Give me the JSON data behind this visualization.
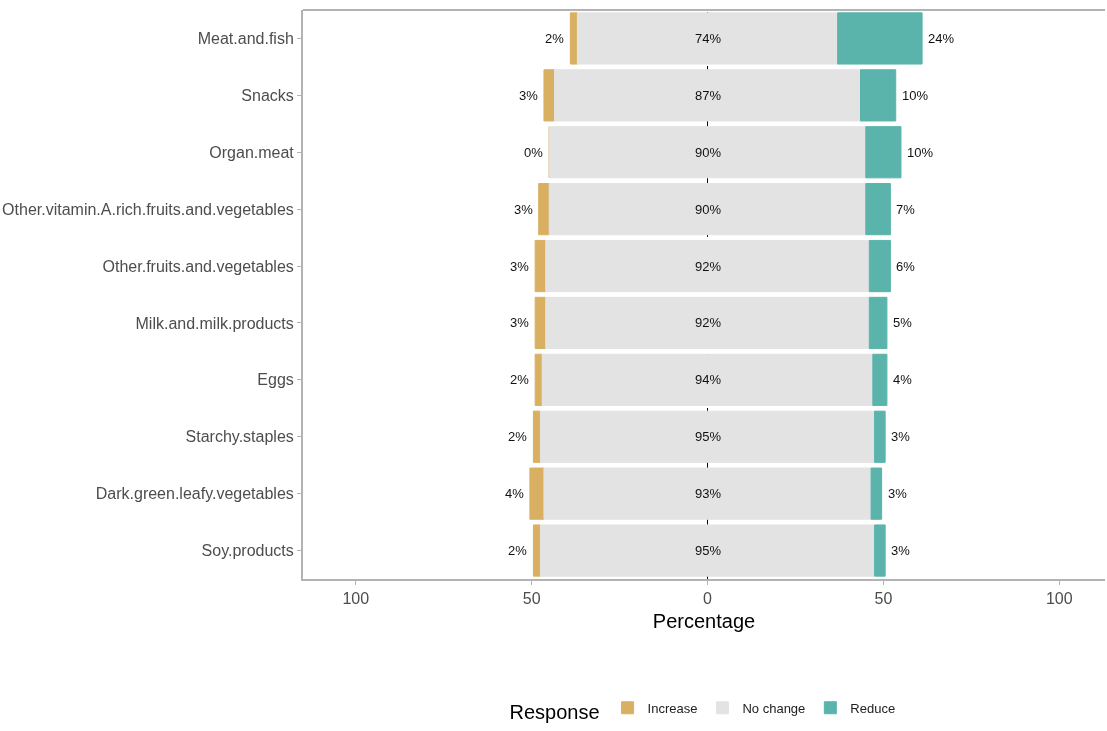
{
  "chart_data": {
    "type": "bar",
    "orientation": "horizontal",
    "stacked": true,
    "xlabel": "Percentage",
    "legend_title": "Response",
    "legend": "bottom",
    "categories": [
      "Meat.and.fish",
      "Snacks",
      "Organ.meat",
      "Other.vitamin.A.rich.fruits.and.vegetables",
      "Other.fruits.and.vegetables",
      "Milk.and.milk.products",
      "Eggs",
      "Starchy.staples",
      "Dark.green.leafy.vegetables",
      "Soy.products"
    ],
    "series": [
      {
        "name": "Increase",
        "color": "#d9b062",
        "values": [
          2,
          3,
          0,
          3,
          3,
          3,
          2,
          2,
          4,
          2
        ],
        "base": [
          -39,
          -46.5,
          -45,
          -48,
          -49,
          -49,
          -49,
          -49.5,
          -50.5,
          -49.5
        ],
        "value_labels": [
          "2%",
          "3%",
          "0%",
          "3%",
          "3%",
          "3%",
          "2%",
          "2%",
          "4%",
          "2%"
        ]
      },
      {
        "name": "No change",
        "color": "#e3e3e3",
        "values": [
          74,
          87,
          90,
          90,
          92,
          92,
          94,
          95,
          93,
          95
        ],
        "base": [
          -37,
          -43.5,
          -45,
          -45,
          -46,
          -46,
          -47,
          -47.5,
          -46.5,
          -47.5
        ],
        "value_labels": [
          "74%",
          "87%",
          "90%",
          "90%",
          "92%",
          "92%",
          "94%",
          "95%",
          "93%",
          "95%"
        ]
      },
      {
        "name": "Reduce",
        "color": "#5ab4ac",
        "values": [
          24,
          10,
          10,
          7,
          6,
          5,
          4,
          3,
          3,
          3
        ],
        "base": [
          37,
          43.5,
          45,
          45,
          46,
          46,
          47,
          47.5,
          46.5,
          47.5
        ],
        "value_labels": [
          "24%",
          "10%",
          "10%",
          "7%",
          "6%",
          "5%",
          "4%",
          "3%",
          "3%",
          "3%"
        ]
      }
    ],
    "xlim": [
      -115,
      113
    ],
    "xticks": [
      {
        "value": -100,
        "label": "100"
      },
      {
        "value": -50,
        "label": "50"
      },
      0,
      50,
      100
    ],
    "ref_lines": [
      {
        "axis": "x",
        "value": 0,
        "color": "#000000",
        "line_style": "dashed"
      }
    ],
    "grid": false
  }
}
